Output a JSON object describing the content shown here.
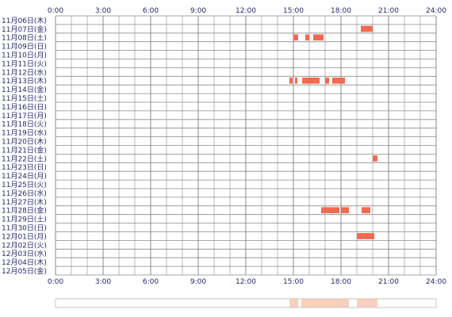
{
  "chart_data": {
    "type": "timeline-heatmap",
    "title": "",
    "xlabel": "",
    "ylabel": "",
    "x_range_hours": [
      0,
      24
    ],
    "x_ticks": [
      "0:00",
      "3:00",
      "6:00",
      "9:00",
      "12:00",
      "15:00",
      "18:00",
      "21:00",
      "24:00"
    ],
    "rows": [
      "11月06日(木)",
      "11月07日(金)",
      "11月08日(土)",
      "11月09日(日)",
      "11月10日(月)",
      "11月11日(火)",
      "11月12日(水)",
      "11月13日(木)",
      "11月14日(金)",
      "11月15日(土)",
      "11月16日(日)",
      "11月17日(月)",
      "11月18日(火)",
      "11月19日(水)",
      "11月20日(木)",
      "11月21日(金)",
      "11月22日(土)",
      "11月23日(日)",
      "11月24日(月)",
      "11月25日(火)",
      "11月26日(水)",
      "11月27日(木)",
      "11月28日(金)",
      "11月29日(土)",
      "11月30日(日)",
      "12月01日(月)",
      "12月02日(火)",
      "12月03日(水)",
      "12月04日(木)",
      "12月05日(金)"
    ],
    "segments": [
      {
        "row": 1,
        "start": 19.25,
        "end": 20.0
      },
      {
        "row": 2,
        "start": 15.0,
        "end": 15.3
      },
      {
        "row": 2,
        "start": 15.75,
        "end": 16.0
      },
      {
        "row": 2,
        "start": 16.25,
        "end": 16.9
      },
      {
        "row": 7,
        "start": 14.75,
        "end": 14.95
      },
      {
        "row": 7,
        "start": 15.1,
        "end": 15.25
      },
      {
        "row": 7,
        "start": 15.55,
        "end": 16.65
      },
      {
        "row": 7,
        "start": 17.0,
        "end": 17.25
      },
      {
        "row": 7,
        "start": 17.45,
        "end": 18.25
      },
      {
        "row": 16,
        "start": 20.0,
        "end": 20.3
      },
      {
        "row": 22,
        "start": 16.75,
        "end": 17.9
      },
      {
        "row": 22,
        "start": 18.0,
        "end": 18.5
      },
      {
        "row": 22,
        "start": 19.3,
        "end": 19.85
      },
      {
        "row": 25,
        "start": 19.0,
        "end": 20.1
      }
    ],
    "summary_segments": [
      {
        "start": 14.75,
        "end": 15.3
      },
      {
        "start": 15.5,
        "end": 18.5
      },
      {
        "start": 19.0,
        "end": 20.3
      }
    ],
    "colors": {
      "bar": "#f26a4f",
      "summary": "#f8c8b0",
      "grid": "#8a8a8a",
      "text": "#1f2a6b"
    }
  }
}
